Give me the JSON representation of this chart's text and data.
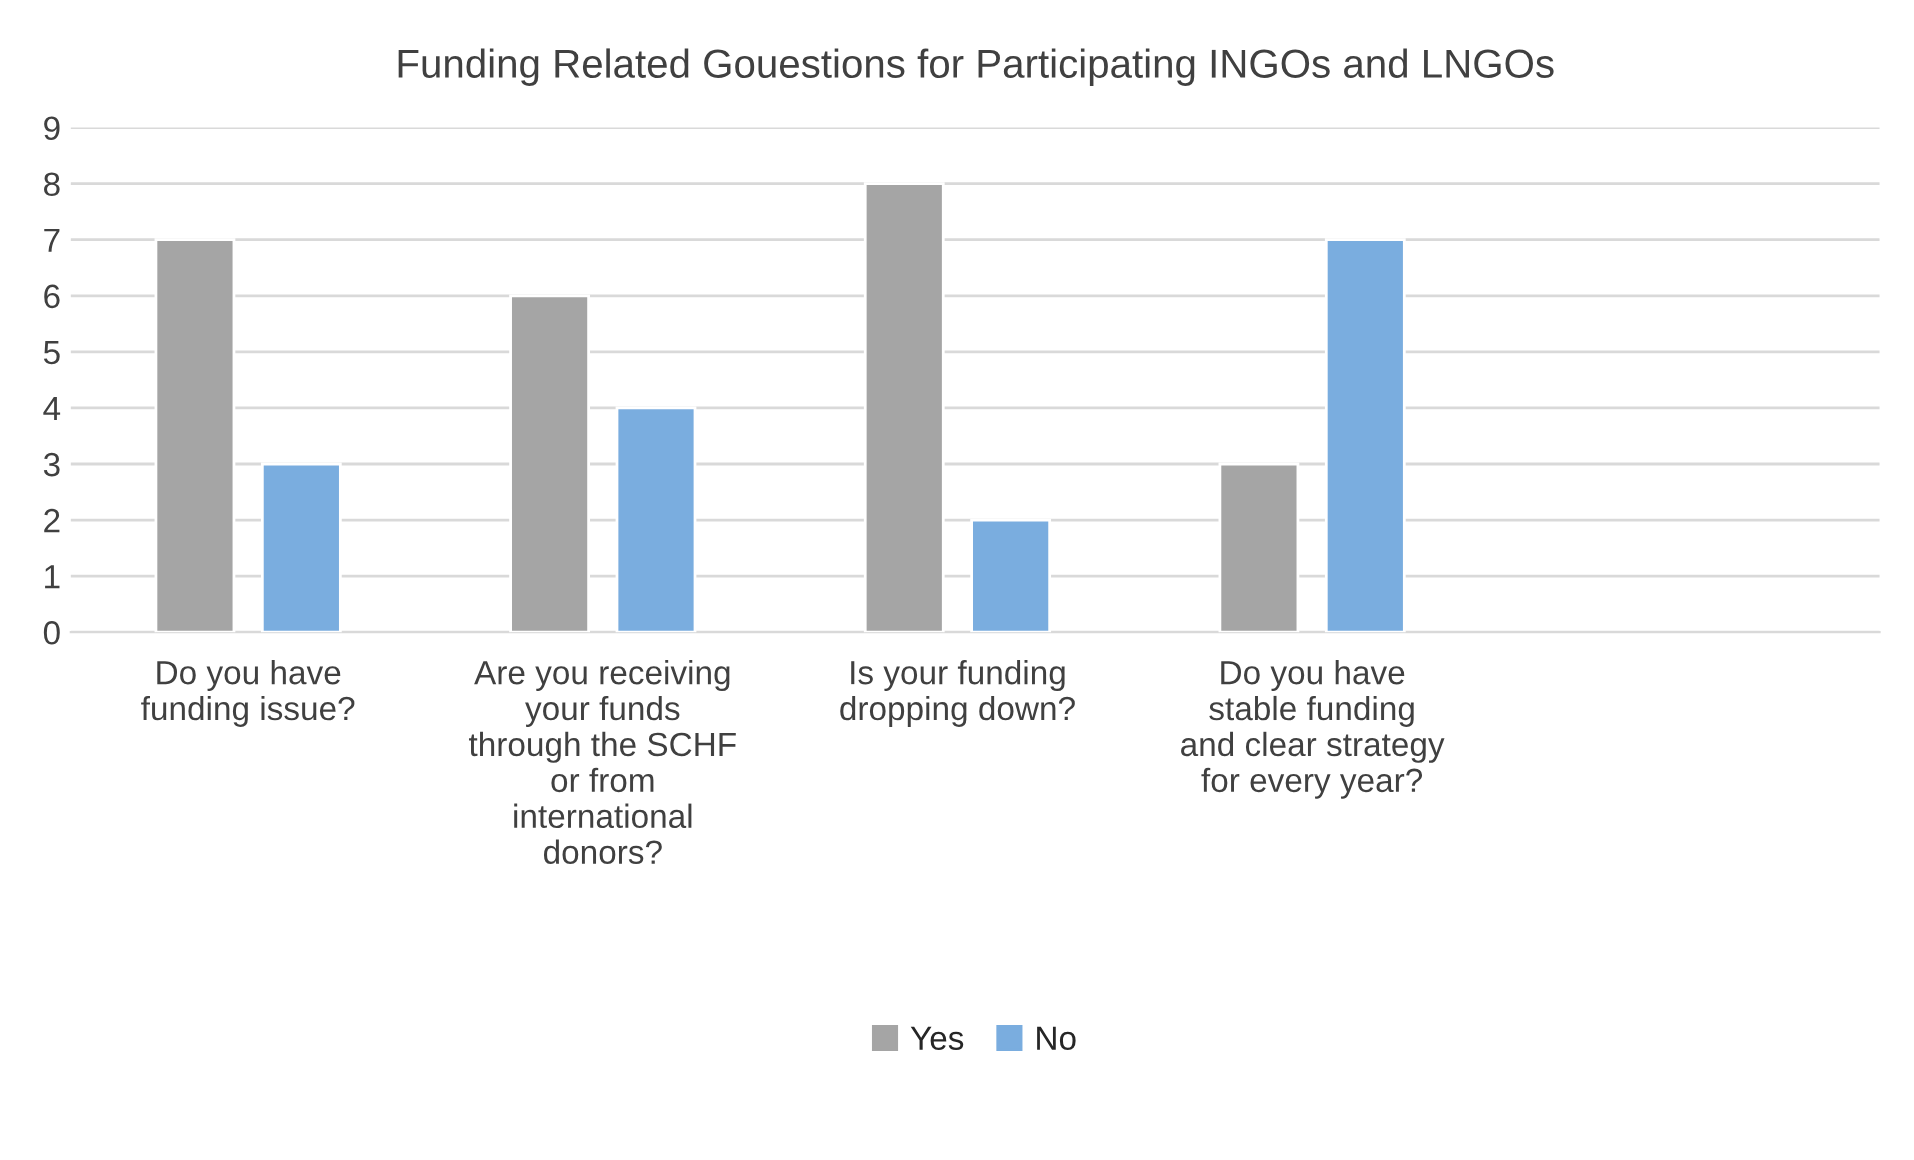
{
  "chart_data": {
    "type": "bar",
    "title": "Funding Related Gouestions for Participating INGOs and LNGOs",
    "categories": [
      "Do you have\nfunding issue?",
      "Are you receiving\nyour funds\nthrough the SCHF\nor from\ninternational\ndonors?",
      "Is your funding\ndropping down?",
      "Do you have\nstable funding\nand clear strategy\nfor every year?",
      null
    ],
    "series": [
      {
        "name": "Yes",
        "color": "#a5a5a5",
        "values": [
          7,
          6,
          8,
          3,
          null
        ]
      },
      {
        "name": "No",
        "color": "#7aaddf",
        "values": [
          3,
          4,
          2,
          7,
          null
        ]
      }
    ],
    "ylim": [
      0,
      9
    ],
    "yticks": [
      0,
      1,
      2,
      3,
      4,
      5,
      6,
      7,
      8,
      9
    ],
    "grid": "y",
    "legend": "bottom"
  }
}
